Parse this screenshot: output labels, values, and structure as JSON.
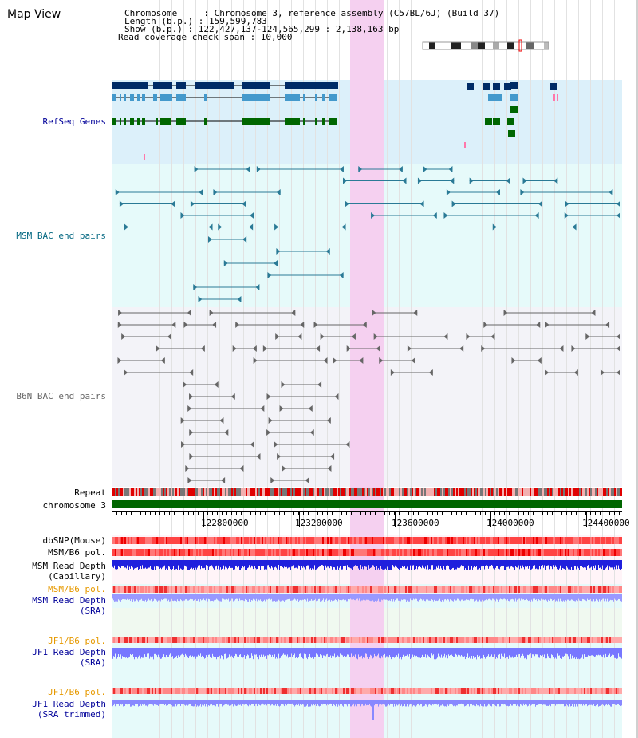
{
  "app": {
    "title": "Map View"
  },
  "info": {
    "line1": "Chromosome     : Chromosome 3, reference assembly (C57BL/6J) (Build 37)",
    "line2": "Length (b.p.) : 159,599,783",
    "line3": "Show (b.p.) : 122,427,137-124,565,299 : 2,138,163 bp",
    "line4": "Read coverage check span : 10,000"
  },
  "tracks": {
    "refseq": "RefSeq Genes",
    "msm_bac": "MSM BAC end pairs",
    "b6n_bac": "B6N BAC end pairs",
    "repeat": "Repeat",
    "chromosome": "chromosome 3",
    "dbsnp": "dbSNP(Mouse)",
    "msm_b6_pol": "MSM/B6 pol.",
    "msm_depth_cap_1": "MSM Read Depth",
    "msm_depth_cap_2": "(Capillary)",
    "msm_b6_pol_2": "MSM/B6 pol.",
    "msm_depth_sra_1": "MSM Read Depth",
    "msm_depth_sra_2": "(SRA)",
    "jf1_b6_pol": "JF1/B6 pol.",
    "jf1_depth_sra_1": "JF1 Read Depth",
    "jf1_depth_sra_2": "(SRA)",
    "jf1_b6_pol_2": "JF1/B6 pol.",
    "jf1_depth_trim_1": "JF1 Read Depth",
    "jf1_depth_trim_2": "(SRA trimmed)"
  },
  "axis": {
    "ticks": [
      "122800000",
      "123200000",
      "123600000",
      "124000000",
      "124400000"
    ]
  },
  "colors": {
    "refseq_label": "#000099",
    "msm_label": "#006680",
    "b6n_label": "#666666",
    "orange_label": "#e69900",
    "blue_label": "#000099",
    "highlight": "#f5d0f0",
    "gene_dark": "#002b66",
    "gene_light": "#4499cc",
    "gene_green": "#006600",
    "chrom_green": "#006600"
  }
}
